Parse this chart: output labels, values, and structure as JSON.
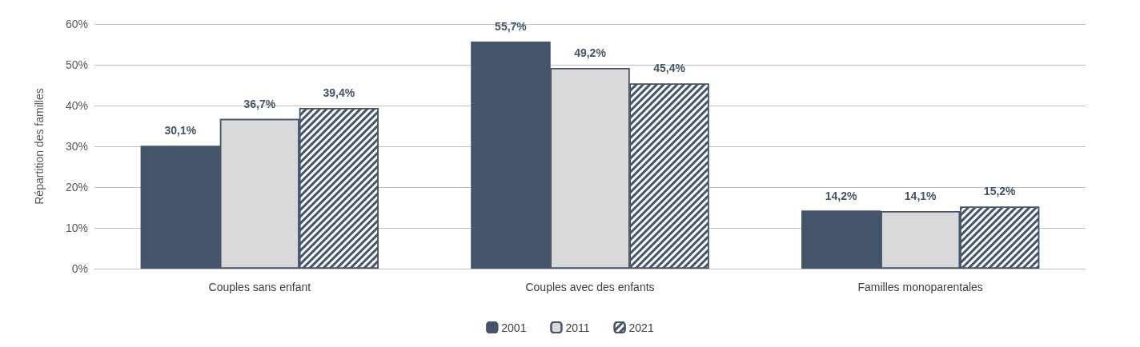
{
  "chart_data": {
    "type": "bar",
    "ylabel": "Répartition des familles",
    "categories": [
      "Couples sans enfant",
      "Couples avec des enfants",
      "Familles monoparentales"
    ],
    "series": [
      {
        "name": "2001",
        "color": "#44546a",
        "values": [
          30.1,
          55.7,
          14.2
        ],
        "value_labels": [
          "30,1%",
          "55,7%",
          "14,2%"
        ]
      },
      {
        "name": "2011",
        "color": "#d9d9d9",
        "values": [
          36.7,
          49.2,
          14.1
        ],
        "value_labels": [
          "36,7%",
          "49,2%",
          "14,1%"
        ]
      },
      {
        "name": "2021",
        "color": "#44546a",
        "values": [
          39.4,
          45.4,
          15.2
        ],
        "value_labels": [
          "39,4%",
          "45,4%",
          "15,2%"
        ]
      }
    ],
    "ylim": [
      0,
      60
    ],
    "yticks": [
      {
        "value": 0,
        "label": "0%"
      },
      {
        "value": 10,
        "label": "10%"
      },
      {
        "value": 20,
        "label": "20%"
      },
      {
        "value": 30,
        "label": "30%"
      },
      {
        "value": 40,
        "label": "40%"
      },
      {
        "value": 50,
        "label": "50%"
      },
      {
        "value": 60,
        "label": "60%"
      }
    ],
    "grid": "y",
    "legend": "bottom"
  }
}
